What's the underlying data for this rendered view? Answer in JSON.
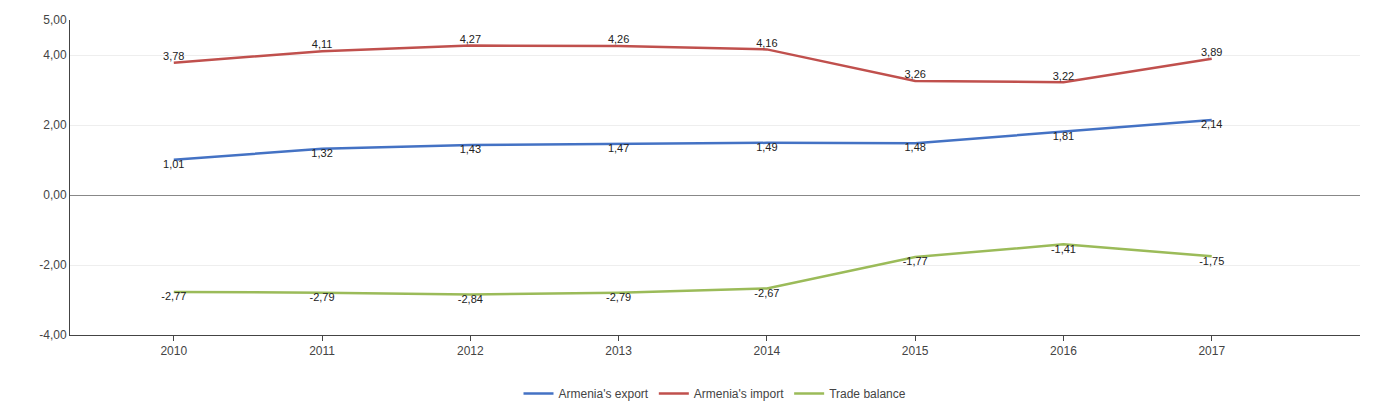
{
  "chart_data": {
    "type": "line",
    "x": [
      2010,
      2011,
      2012,
      2013,
      2014,
      2015,
      2016,
      2017
    ],
    "series": [
      {
        "name": "Armenia's export",
        "color": "#4472C4",
        "values": [
          1.01,
          1.32,
          1.43,
          1.47,
          1.49,
          1.48,
          1.81,
          2.14
        ],
        "value_labels": [
          "1,01",
          "1,32",
          "1,43",
          "1,47",
          "1,49",
          "1,48",
          "1,81",
          "2,14"
        ]
      },
      {
        "name": "Armenia's import",
        "color": "#C0504D",
        "values": [
          3.78,
          4.11,
          4.27,
          4.26,
          4.16,
          3.26,
          3.22,
          3.89
        ],
        "value_labels": [
          "3,78",
          "4,11",
          "4,27",
          "4,26",
          "4,16",
          "3,26",
          "3,22",
          "3,89"
        ]
      },
      {
        "name": "Trade balance",
        "color": "#9BBB59",
        "values": [
          -2.77,
          -2.79,
          -2.84,
          -2.79,
          -2.67,
          -1.77,
          -1.41,
          -1.75
        ],
        "value_labels": [
          "-2,77",
          "-2,79",
          "-2,84",
          "-2,79",
          "-2,67",
          "-1,77",
          "-1,41",
          "-1,75"
        ]
      }
    ],
    "xlim": [
      2009.3,
      2018.0
    ],
    "xticks": [
      2010,
      2011,
      2012,
      2013,
      2014,
      2015,
      2016,
      2017
    ],
    "ylim": [
      -4.0,
      5.0
    ],
    "yticks": [
      {
        "value": 5.0,
        "label": "5,00"
      },
      {
        "value": 4.0,
        "label": "4,00"
      },
      {
        "value": 2.0,
        "label": "2,00"
      },
      {
        "value": 0.0,
        "label": "0,00"
      },
      {
        "value": -2.0,
        "label": "-2,00"
      },
      {
        "value": -4.0,
        "label": "-4,00"
      }
    ],
    "grid": true,
    "legend": "bottom",
    "data_labels": true
  }
}
